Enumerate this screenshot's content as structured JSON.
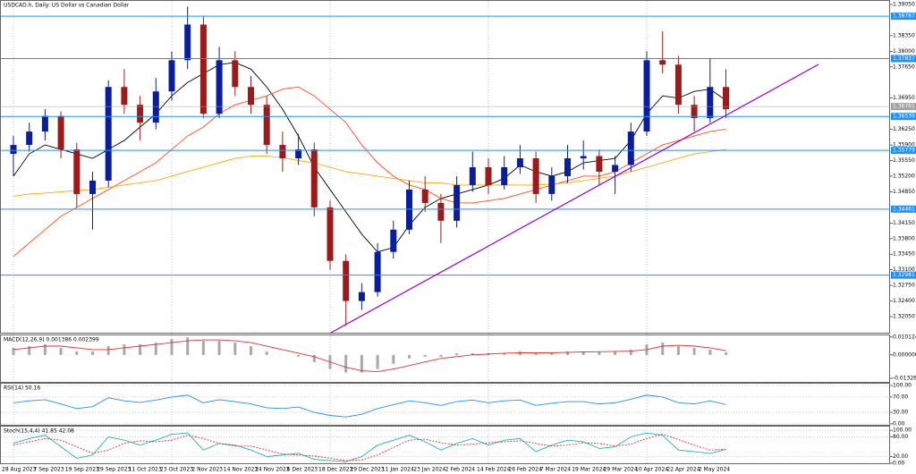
{
  "chart_data": [
    {
      "type": "candlestick",
      "title": "USDCAD.h, Daily:  US Dollar vs Canadian Dollar",
      "categories": [
        "28 Aug 2023",
        null,
        "7 Sep 2023",
        null,
        "19 Sep 2023",
        null,
        "29 Sep 2023",
        null,
        "11 Oct 2023",
        null,
        "23 Oct 2023",
        null,
        "2 Nov 2023",
        null,
        "14 Nov 2023",
        null,
        "24 Nov 2023",
        null,
        "6 Dec 2023",
        null,
        "18 Dec 2023",
        null,
        "29 Dec 2023",
        null,
        "11 Jan 2024",
        null,
        "23 Jan 2024",
        null,
        "2 Feb 2024",
        null,
        "14 Feb 2024",
        null,
        "26 Feb 2024",
        null,
        "7 Mar 2024",
        null,
        "19 Mar 2024",
        null,
        "29 Mar 2024",
        null,
        "10 Apr 2024",
        null,
        "22 Apr 2024",
        null,
        "2 May 2024",
        null
      ],
      "open": [
        1.357,
        1.359,
        1.362,
        1.3655,
        1.358,
        1.348,
        1.351,
        1.372,
        1.368,
        1.364,
        1.371,
        1.378,
        1.386,
        1.366,
        1.378,
        1.372,
        1.368,
        1.359,
        1.356,
        1.358,
        1.345,
        1.333,
        1.324,
        1.326,
        1.335,
        1.34,
        1.349,
        1.346,
        1.342,
        1.35,
        1.354,
        1.35,
        1.354,
        1.356,
        1.348,
        1.352,
        1.356,
        1.3565,
        1.353,
        1.3545,
        1.362,
        1.378,
        1.377,
        1.368,
        1.365,
        1.372
      ],
      "high": [
        1.361,
        1.364,
        1.367,
        1.3665,
        1.3595,
        1.353,
        1.3735,
        1.376,
        1.37,
        1.374,
        1.38,
        1.39,
        1.388,
        1.381,
        1.38,
        1.3745,
        1.37,
        1.362,
        1.3615,
        1.3595,
        1.3465,
        1.3345,
        1.328,
        1.337,
        1.342,
        1.351,
        1.352,
        1.348,
        1.352,
        1.3575,
        1.356,
        1.3565,
        1.359,
        1.3575,
        1.354,
        1.359,
        1.36,
        1.358,
        1.3565,
        1.364,
        1.38,
        1.3845,
        1.379,
        1.37,
        1.3785,
        1.376
      ],
      "low": [
        1.352,
        1.3575,
        1.36,
        1.356,
        1.345,
        1.34,
        1.3495,
        1.366,
        1.36,
        1.3625,
        1.369,
        1.376,
        1.365,
        1.365,
        1.37,
        1.366,
        1.357,
        1.353,
        1.3545,
        1.343,
        1.331,
        1.3185,
        1.322,
        1.325,
        1.3335,
        1.339,
        1.344,
        1.337,
        1.3405,
        1.3485,
        1.348,
        1.349,
        1.3525,
        1.346,
        1.3465,
        1.3505,
        1.3535,
        1.35,
        1.348,
        1.353,
        1.361,
        1.375,
        1.366,
        1.362,
        1.364,
        1.365
      ],
      "close": [
        1.359,
        1.362,
        1.3655,
        1.358,
        1.348,
        1.351,
        1.372,
        1.368,
        1.364,
        1.371,
        1.378,
        1.386,
        1.366,
        1.378,
        1.372,
        1.368,
        1.359,
        1.356,
        1.358,
        1.345,
        1.333,
        1.324,
        1.326,
        1.335,
        1.34,
        1.349,
        1.346,
        1.342,
        1.35,
        1.354,
        1.35,
        1.354,
        1.356,
        1.348,
        1.352,
        1.356,
        1.3565,
        1.353,
        1.3545,
        1.362,
        1.378,
        1.377,
        1.368,
        1.365,
        1.372,
        1.367
      ],
      "up_color": "#0a1e9c",
      "down_color": "#9c1a1a",
      "series": [
        {
          "color": "#000000",
          "values": [
            1.352,
            1.357,
            1.359,
            1.358,
            1.357,
            1.356,
            1.358,
            1.36,
            1.363,
            1.366,
            1.37,
            1.373,
            1.375,
            1.377,
            1.3775,
            1.376,
            1.372,
            1.367,
            1.361,
            1.354,
            1.349,
            1.344,
            1.339,
            1.335,
            1.336,
            1.341,
            1.345,
            1.347,
            1.348,
            1.349,
            1.35,
            1.3515,
            1.3545,
            1.353,
            1.352,
            1.353,
            1.355,
            1.3555,
            1.356,
            1.36,
            1.366,
            1.37,
            1.3695,
            1.371,
            1.3715,
            1.369
          ]
        },
        {
          "color": "#ff4a14",
          "values": [
            1.334,
            1.337,
            1.34,
            1.343,
            1.345,
            1.347,
            1.349,
            1.351,
            1.353,
            1.355,
            1.358,
            1.361,
            1.363,
            1.366,
            1.368,
            1.369,
            1.37,
            1.3715,
            1.372,
            1.37,
            1.367,
            1.364,
            1.359,
            1.355,
            1.352,
            1.35,
            1.349,
            1.347,
            1.346,
            1.346,
            1.3465,
            1.347,
            1.348,
            1.349,
            1.35,
            1.351,
            1.352,
            1.352,
            1.353,
            1.355,
            1.357,
            1.359,
            1.36,
            1.361,
            1.362,
            1.3625
          ]
        },
        {
          "color": "#ffa500",
          "values": [
            1.3475,
            1.348,
            1.3482,
            1.3485,
            1.3488,
            1.349,
            1.3495,
            1.35,
            1.3505,
            1.351,
            1.352,
            1.353,
            1.354,
            1.355,
            1.356,
            1.3565,
            1.3565,
            1.3562,
            1.3555,
            1.355,
            1.354,
            1.353,
            1.3525,
            1.352,
            1.3515,
            1.351,
            1.3505,
            1.3505,
            1.35,
            1.35,
            1.35,
            1.35,
            1.35,
            1.35,
            1.3502,
            1.3505,
            1.351,
            1.3515,
            1.352,
            1.353,
            1.354,
            1.355,
            1.356,
            1.357,
            1.3575,
            1.358
          ]
        }
      ],
      "levels": [
        1.38787,
        1.37837,
        1.36539,
        1.35779,
        1.34461,
        1.32981
      ],
      "level_color": "#1e90ff",
      "current_price": 1.36761,
      "ylim": [
        1.3169,
        1.3915
      ],
      "yticks": [
        {
          "value": 1.3905,
          "label": "1.39050"
        },
        {
          "value": 1.3835,
          "label": "1.38350"
        },
        {
          "value": 1.38,
          "label": "1.38000"
        },
        {
          "value": 1.3765,
          "label": "1.37650"
        },
        {
          "value": 1.3695,
          "label": "1.36950"
        },
        {
          "value": 1.3625,
          "label": "1.36250"
        },
        {
          "value": 1.359,
          "label": "1.35900"
        },
        {
          "value": 1.3555,
          "label": "1.35550"
        },
        {
          "value": 1.352,
          "label": "1.35200"
        },
        {
          "value": 1.3485,
          "label": "1.34850"
        },
        {
          "value": 1.3415,
          "label": "1.34150"
        },
        {
          "value": 1.338,
          "label": "1.33800"
        },
        {
          "value": 1.3345,
          "label": "1.33450"
        },
        {
          "value": 1.331,
          "label": "1.33100"
        },
        {
          "value": 1.3275,
          "label": "1.32750"
        },
        {
          "value": 1.324,
          "label": "1.32400"
        },
        {
          "value": 1.3205,
          "label": "1.32050"
        }
      ]
    },
    {
      "type": "macd",
      "title": "MACD(12,26,9) 0.001386 0.002399",
      "color": "#a9a9a9",
      "values": [
        0.004,
        0.005,
        0.006,
        0.004,
        0.002,
        0.002,
        0.005,
        0.006,
        0.006,
        0.007,
        0.009,
        0.01,
        0.008,
        0.008,
        0.007,
        0.005,
        0.002,
        0.0,
        -0.001,
        -0.004,
        -0.008,
        -0.01,
        -0.01,
        -0.008,
        -0.005,
        -0.002,
        -0.001,
        -0.001,
        0.001,
        0.001,
        0.001,
        0.001,
        0.002,
        0.001,
        0.001,
        0.002,
        0.002,
        0.002,
        0.002,
        0.003,
        0.006,
        0.007,
        0.005,
        0.004,
        0.003,
        0.0014
      ],
      "series": [
        {
          "color": "#e03030",
          "values": [
            0.003,
            0.004,
            0.005,
            0.005,
            0.004,
            0.003,
            0.003,
            0.004,
            0.005,
            0.006,
            0.007,
            0.008,
            0.0085,
            0.0085,
            0.008,
            0.007,
            0.005,
            0.003,
            0.001,
            -0.001,
            -0.004,
            -0.007,
            -0.009,
            -0.0095,
            -0.008,
            -0.006,
            -0.004,
            -0.002,
            -0.001,
            0.0,
            0.0005,
            0.001,
            0.0012,
            0.0012,
            0.0012,
            0.0015,
            0.0017,
            0.0018,
            0.002,
            0.0022,
            0.003,
            0.005,
            0.0055,
            0.005,
            0.004,
            0.0024
          ]
        }
      ],
      "ylim": [
        -0.0158,
        0.0116
      ],
      "yticks": [
        0.010124,
        {
          "value": 0,
          "label": "0.000000"
        },
        -0.013263
      ]
    },
    {
      "type": "line",
      "title": "RSI(14) 50.16",
      "series": [
        {
          "color": "#1e90ff",
          "values": [
            55,
            60,
            63,
            52,
            40,
            45,
            68,
            60,
            56,
            62,
            70,
            75,
            55,
            63,
            58,
            52,
            42,
            40,
            44,
            30,
            22,
            18,
            25,
            40,
            50,
            60,
            55,
            48,
            58,
            62,
            55,
            60,
            62,
            48,
            54,
            58,
            58,
            52,
            55,
            64,
            75,
            70,
            55,
            52,
            60,
            50.16
          ]
        }
      ],
      "ylim": [
        -4.8,
        107.1
      ],
      "yticks": [
        {
          "value": 100,
          "label": "100.00"
        },
        {
          "value": 70,
          "label": "70.00"
        },
        {
          "value": 30,
          "label": "30.00"
        },
        {
          "value": 0,
          "label": "0.00"
        }
      ]
    },
    {
      "type": "line",
      "title": "Stoch(15,4,4) 41.85 42.08",
      "series": [
        {
          "color": "#20b2aa",
          "values": [
            60,
            75,
            85,
            50,
            15,
            25,
            80,
            70,
            55,
            70,
            88,
            92,
            40,
            60,
            55,
            40,
            20,
            25,
            30,
            12,
            8,
            5,
            20,
            55,
            70,
            85,
            65,
            40,
            60,
            75,
            55,
            70,
            75,
            35,
            55,
            70,
            65,
            45,
            50,
            80,
            92,
            85,
            40,
            35,
            30,
            41.85
          ]
        },
        {
          "color": "#e03030",
          "dashed": true,
          "values": [
            55,
            65,
            75,
            70,
            50,
            30,
            40,
            60,
            68,
            65,
            70,
            85,
            75,
            60,
            52,
            52,
            40,
            28,
            25,
            22,
            15,
            8,
            10,
            25,
            48,
            70,
            73,
            62,
            55,
            58,
            62,
            65,
            68,
            60,
            52,
            55,
            62,
            60,
            52,
            58,
            75,
            88,
            72,
            55,
            40,
            42.08
          ]
        }
      ],
      "ylim": [
        -2.8,
        113.9
      ],
      "yticks": [
        {
          "value": 100,
          "label": "100.00"
        },
        {
          "value": 80,
          "label": "80.00"
        },
        {
          "value": 20,
          "label": "20.00"
        },
        {
          "value": 0,
          "label": "0.00"
        }
      ]
    }
  ]
}
